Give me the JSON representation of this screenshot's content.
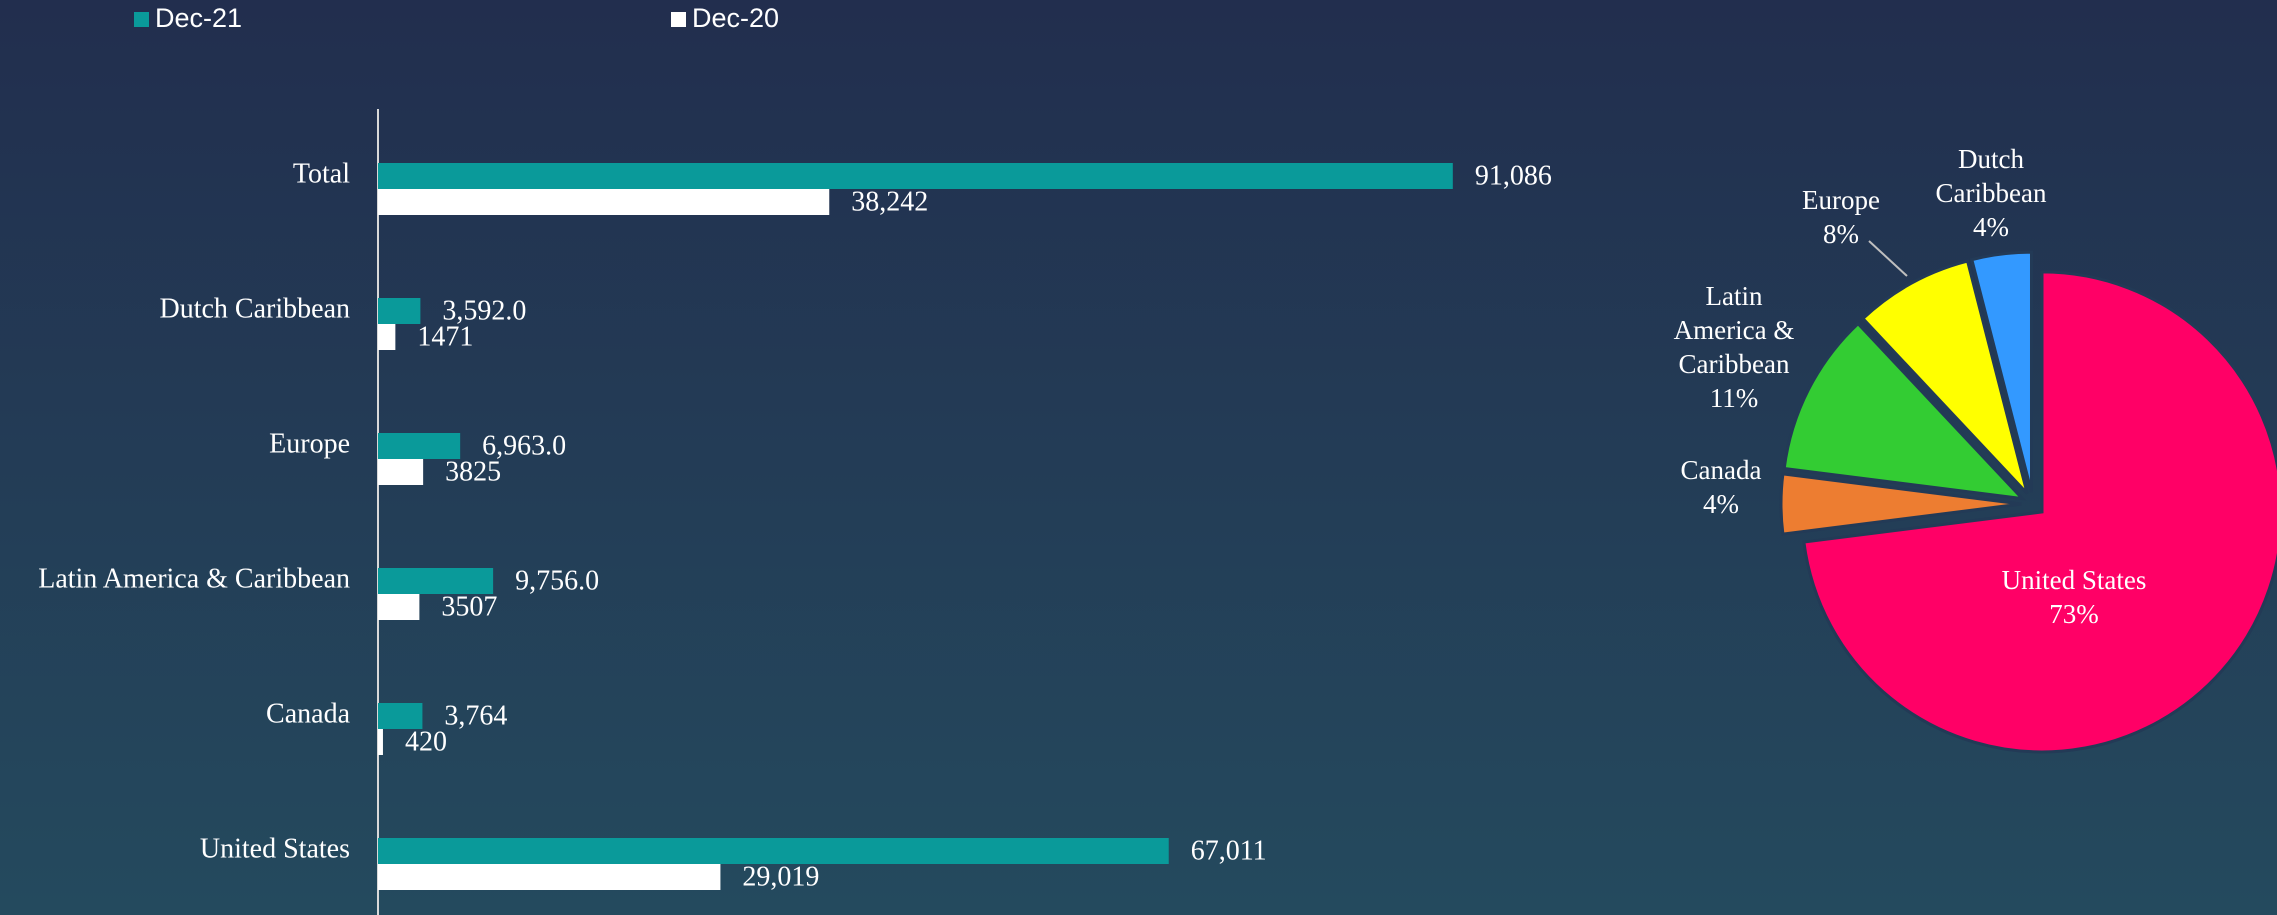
{
  "chart_data": [
    {
      "type": "bar",
      "orientation": "horizontal",
      "categories": [
        "Total",
        "Dutch Caribbean",
        "Europe",
        "Latin America & Caribbean",
        "Canada",
        "United States"
      ],
      "series": [
        {
          "name": "Dec-21",
          "color": "#0a9a9a",
          "values": [
            91086,
            3592,
            6963,
            9756,
            3764,
            67011
          ],
          "value_labels": [
            "91,086",
            "3,592.0",
            "6,963.0",
            "9,756.0",
            "3,764",
            "67,011"
          ]
        },
        {
          "name": "Dec-20",
          "color": "#ffffff",
          "values": [
            38242,
            1471,
            3825,
            3507,
            420,
            29019
          ],
          "value_labels": [
            "38,242",
            "1471",
            "3825",
            "3507",
            "420",
            "29,019"
          ]
        }
      ],
      "xlim": [
        0,
        100000
      ]
    },
    {
      "type": "pie",
      "categories": [
        "United States",
        "Canada",
        "Latin America & Caribbean",
        "Europe",
        "Dutch Caribbean"
      ],
      "values": [
        73,
        4,
        11,
        8,
        4
      ],
      "value_labels": [
        "73%",
        "4%",
        "11%",
        "8%",
        "4%"
      ],
      "colors": [
        "#ff0066",
        "#ed7d31",
        "#33cc33",
        "#ffff00",
        "#3399ff"
      ]
    }
  ]
}
